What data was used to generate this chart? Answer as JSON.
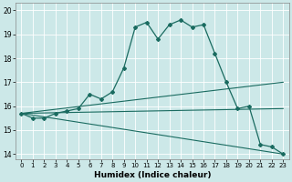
{
  "title": "",
  "xlabel": "Humidex (Indice chaleur)",
  "ylabel": "",
  "background_color": "#cce8e8",
  "plot_bg_color": "#cce8e8",
  "line_color": "#1a6b60",
  "xlim": [
    -0.5,
    23.5
  ],
  "ylim": [
    13.8,
    20.3
  ],
  "xticks": [
    0,
    1,
    2,
    3,
    4,
    5,
    6,
    7,
    8,
    9,
    10,
    11,
    12,
    13,
    14,
    15,
    16,
    17,
    18,
    19,
    20,
    21,
    22,
    23
  ],
  "yticks": [
    14,
    15,
    16,
    17,
    18,
    19,
    20
  ],
  "line1_x": [
    0,
    1,
    2,
    3,
    4,
    5,
    6,
    7,
    8,
    9,
    10,
    11,
    12,
    13,
    14,
    15,
    16,
    17,
    18,
    19,
    20,
    21,
    22,
    23
  ],
  "line1_y": [
    15.7,
    15.5,
    15.5,
    15.7,
    15.8,
    15.9,
    16.5,
    16.3,
    16.6,
    17.6,
    19.3,
    19.5,
    18.8,
    19.4,
    19.6,
    19.3,
    19.4,
    18.2,
    17.0,
    15.9,
    16.0,
    14.4,
    14.3,
    14.0
  ],
  "line2_x": [
    0,
    23
  ],
  "line2_y": [
    15.7,
    17.0
  ],
  "line3_x": [
    0,
    23
  ],
  "line3_y": [
    15.7,
    15.9
  ],
  "line4_x": [
    0,
    23
  ],
  "line4_y": [
    15.7,
    14.0
  ],
  "xlabel_fontsize": 6.5,
  "tick_fontsize": 5.0
}
